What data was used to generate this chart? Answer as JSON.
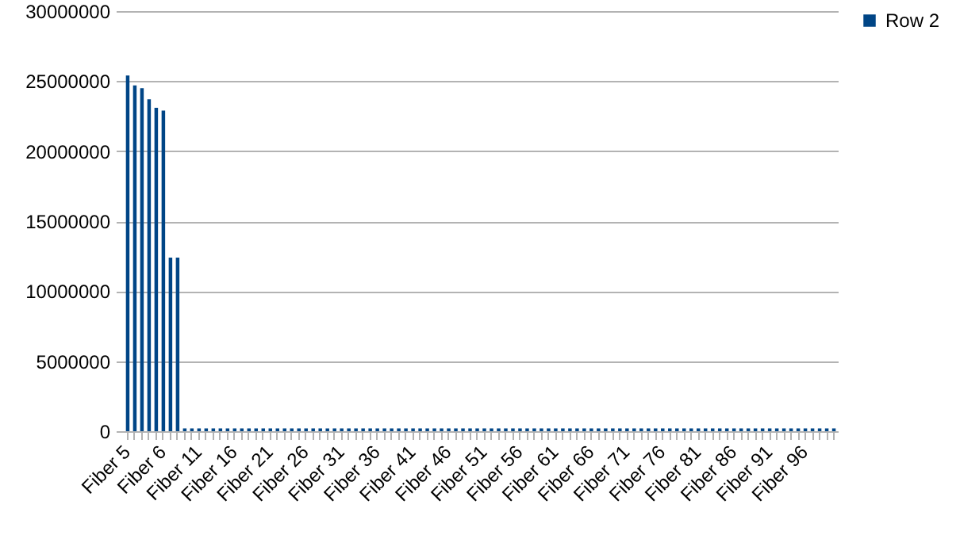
{
  "chart_data": {
    "type": "bar",
    "categories": [
      "Fiber 5",
      null,
      null,
      null,
      null,
      "Fiber 6",
      null,
      null,
      null,
      null,
      "Fiber 11",
      null,
      null,
      null,
      null,
      "Fiber 16",
      null,
      null,
      null,
      null,
      "Fiber 21",
      null,
      null,
      null,
      null,
      "Fiber 26",
      null,
      null,
      null,
      null,
      "Fiber 31",
      null,
      null,
      null,
      null,
      "Fiber 36",
      null,
      null,
      null,
      null,
      "Fiber 41",
      null,
      null,
      null,
      null,
      "Fiber 46",
      null,
      null,
      null,
      null,
      "Fiber 51",
      null,
      null,
      null,
      null,
      "Fiber 56",
      null,
      null,
      null,
      null,
      "Fiber 61",
      null,
      null,
      null,
      null,
      "Fiber 66",
      null,
      null,
      null,
      null,
      "Fiber 71",
      null,
      null,
      null,
      null,
      "Fiber 76",
      null,
      null,
      null,
      null,
      "Fiber 81",
      null,
      null,
      null,
      null,
      "Fiber 86",
      null,
      null,
      null,
      null,
      "Fiber 91",
      null,
      null,
      null,
      null,
      "Fiber 96",
      null,
      null,
      null,
      null
    ],
    "series": [
      {
        "name": "Row 2",
        "color": "#004586",
        "values": [
          25400000,
          24700000,
          24500000,
          23700000,
          23100000,
          22900000,
          12400000,
          12400000,
          200000,
          200000,
          200000,
          200000,
          200000,
          200000,
          200000,
          200000,
          200000,
          200000,
          200000,
          200000,
          200000,
          200000,
          200000,
          200000,
          200000,
          200000,
          200000,
          200000,
          200000,
          200000,
          200000,
          200000,
          200000,
          200000,
          200000,
          200000,
          200000,
          200000,
          200000,
          200000,
          200000,
          200000,
          200000,
          200000,
          200000,
          200000,
          200000,
          200000,
          200000,
          200000,
          200000,
          200000,
          200000,
          200000,
          200000,
          200000,
          200000,
          200000,
          200000,
          200000,
          200000,
          200000,
          200000,
          200000,
          200000,
          200000,
          200000,
          200000,
          200000,
          200000,
          200000,
          200000,
          200000,
          200000,
          200000,
          200000,
          200000,
          200000,
          200000,
          200000,
          200000,
          200000,
          200000,
          200000,
          200000,
          200000,
          200000,
          200000,
          200000,
          200000,
          200000,
          200000,
          200000,
          200000,
          200000,
          200000,
          200000,
          200000,
          200000,
          200000
        ]
      }
    ],
    "ylim": [
      0,
      30000000
    ],
    "yticks": [
      0,
      5000000,
      10000000,
      15000000,
      20000000,
      25000000,
      30000000
    ],
    "grid": "y",
    "legend": "right"
  }
}
